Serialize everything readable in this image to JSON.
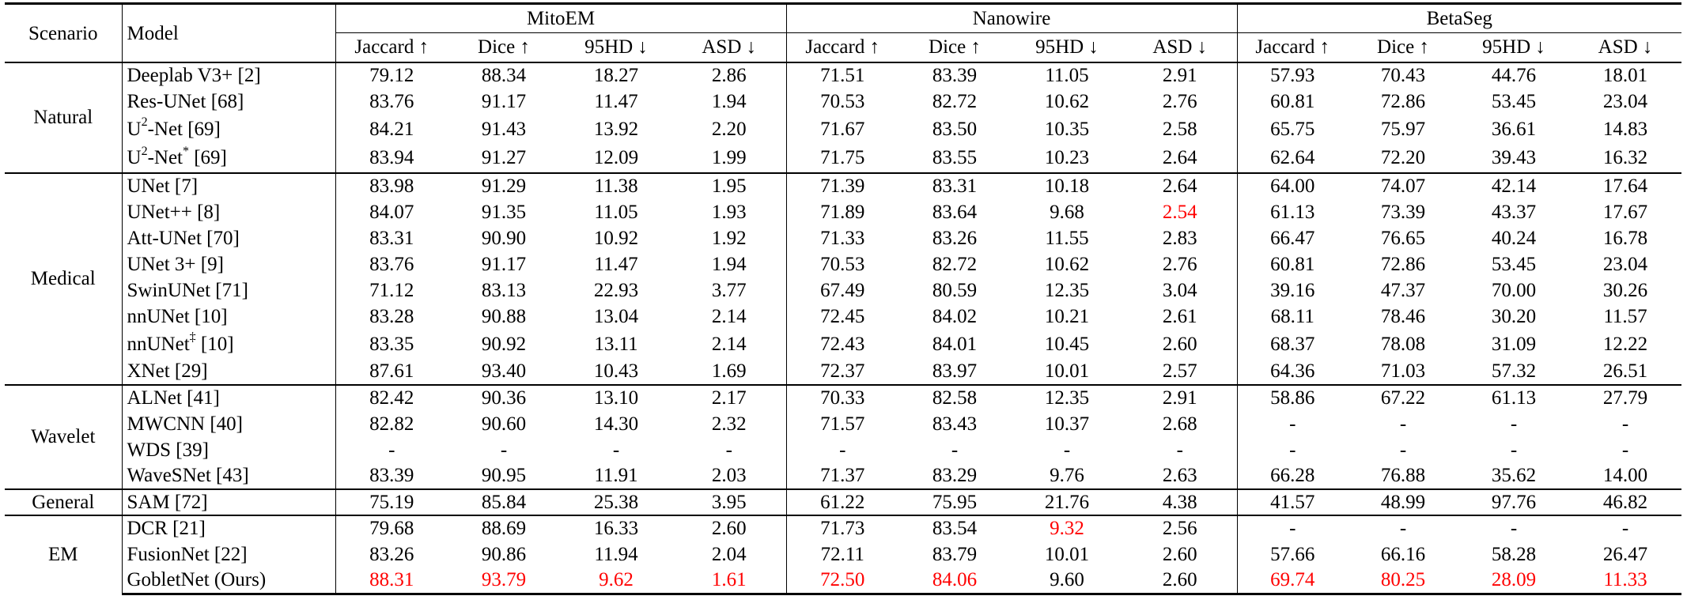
{
  "table": {
    "headers": {
      "scenario": "Scenario",
      "model": "Model",
      "datasets": [
        "MitoEM",
        "Nanowire",
        "BetaSeg"
      ],
      "metrics": [
        "Jaccard ↑",
        "Dice ↑",
        "95HD ↓",
        "ASD ↓"
      ]
    },
    "groups": [
      {
        "scenario": "Natural",
        "rows": [
          {
            "model": "Deeplab V3+ [2]",
            "values": [
              "79.12",
              "88.34",
              "18.27",
              "2.86",
              "71.51",
              "83.39",
              "11.05",
              "2.91",
              "57.93",
              "70.43",
              "44.76",
              "18.01"
            ],
            "style": [
              "",
              "",
              "",
              "",
              "",
              "",
              "",
              "",
              "",
              "",
              "",
              ""
            ]
          },
          {
            "model": "Res-UNet [68]",
            "values": [
              "83.76",
              "91.17",
              "11.47",
              "1.94",
              "70.53",
              "82.72",
              "10.62",
              "2.76",
              "60.81",
              "72.86",
              "53.45",
              "23.04"
            ],
            "style": [
              "",
              "",
              "b",
              "b",
              "",
              "",
              "",
              "",
              "",
              "",
              "",
              ""
            ]
          },
          {
            "model_base": "U",
            "model_sup": "2",
            "model_rest": "-Net [69]",
            "values": [
              "84.21",
              "91.43",
              "13.92",
              "2.20",
              "71.67",
              "83.50",
              "10.35",
              "2.58",
              "65.75",
              "75.97",
              "36.61",
              "14.83"
            ],
            "style": [
              "b",
              "b",
              "",
              "",
              "",
              "",
              "",
              "b",
              "b",
              "b",
              "b",
              "b"
            ]
          },
          {
            "model_base": "U",
            "model_sup": "2",
            "model_rest": "-Net",
            "model_sup2": "*",
            "model_tail": " [69]",
            "values": [
              "83.94",
              "91.27",
              "12.09",
              "1.99",
              "71.75",
              "83.55",
              "10.23",
              "2.64",
              "62.64",
              "72.20",
              "39.43",
              "16.32"
            ],
            "style": [
              "",
              "",
              "",
              "",
              "b",
              "b",
              "b",
              "",
              "",
              "",
              "",
              ""
            ]
          }
        ]
      },
      {
        "scenario": "Medical",
        "rows": [
          {
            "model": "UNet [7]",
            "values": [
              "83.98",
              "91.29",
              "11.38",
              "1.95",
              "71.39",
              "83.31",
              "10.18",
              "2.64",
              "64.00",
              "74.07",
              "42.14",
              "17.64"
            ],
            "style": [
              "",
              "",
              "",
              "",
              "",
              "",
              "",
              "",
              "",
              "",
              "",
              ""
            ]
          },
          {
            "model": "UNet++ [8]",
            "values": [
              "84.07",
              "91.35",
              "11.05",
              "1.93",
              "71.89",
              "83.64",
              "9.68",
              "2.54",
              "61.13",
              "73.39",
              "43.37",
              "17.67"
            ],
            "style": [
              "",
              "",
              "",
              "",
              "",
              "",
              "b",
              "r",
              "",
              "",
              "",
              ""
            ]
          },
          {
            "model": "Att-UNet [70]",
            "values": [
              "83.31",
              "90.90",
              "10.92",
              "1.92",
              "71.33",
              "83.26",
              "11.55",
              "2.83",
              "66.47",
              "76.65",
              "40.24",
              "16.78"
            ],
            "style": [
              "",
              "",
              "",
              "",
              "",
              "",
              "",
              "",
              "",
              "",
              "",
              ""
            ]
          },
          {
            "model": "UNet 3+ [9]",
            "values": [
              "83.76",
              "91.17",
              "11.47",
              "1.94",
              "70.53",
              "82.72",
              "10.62",
              "2.76",
              "60.81",
              "72.86",
              "53.45",
              "23.04"
            ],
            "style": [
              "",
              "",
              "",
              "",
              "",
              "",
              "",
              "",
              "",
              "",
              "",
              ""
            ]
          },
          {
            "model": "SwinUNet [71]",
            "values": [
              "71.12",
              "83.13",
              "22.93",
              "3.77",
              "67.49",
              "80.59",
              "12.35",
              "3.04",
              "39.16",
              "47.37",
              "70.00",
              "30.26"
            ],
            "style": [
              "",
              "",
              "",
              "",
              "",
              "",
              "",
              "",
              "",
              "",
              "",
              ""
            ]
          },
          {
            "model": "nnUNet [10]",
            "values": [
              "83.28",
              "90.88",
              "13.04",
              "2.14",
              "72.45",
              "84.02",
              "10.21",
              "2.61",
              "68.11",
              "78.46",
              "30.20",
              "11.57"
            ],
            "style": [
              "",
              "",
              "",
              "",
              "b",
              "b",
              "",
              "",
              "",
              "",
              "b",
              "b"
            ]
          },
          {
            "model_base": "nnUNet",
            "model_sup": "‡",
            "model_rest": " [10]",
            "values": [
              "83.35",
              "90.92",
              "13.11",
              "2.14",
              "72.43",
              "84.01",
              "10.45",
              "2.60",
              "68.37",
              "78.08",
              "31.09",
              "12.22"
            ],
            "style": [
              "",
              "",
              "",
              "",
              "",
              "",
              "",
              "",
              "b",
              "b",
              "",
              ""
            ]
          },
          {
            "model": "XNet [29]",
            "values": [
              "87.61",
              "93.40",
              "10.43",
              "1.69",
              "72.37",
              "83.97",
              "10.01",
              "2.57",
              "64.36",
              "71.03",
              "57.32",
              "26.51"
            ],
            "style": [
              "b",
              "b",
              "b",
              "b",
              "",
              "",
              "",
              "",
              "",
              "",
              "",
              ""
            ]
          }
        ]
      },
      {
        "scenario": "Wavelet",
        "rows": [
          {
            "model": "ALNet [41]",
            "values": [
              "82.42",
              "90.36",
              "13.10",
              "2.17",
              "70.33",
              "82.58",
              "12.35",
              "2.91",
              "58.86",
              "67.22",
              "61.13",
              "27.79"
            ],
            "style": [
              "",
              "",
              "",
              "",
              "",
              "",
              "",
              "",
              "",
              "",
              "",
              ""
            ]
          },
          {
            "model": "MWCNN [40]",
            "values": [
              "82.82",
              "90.60",
              "14.30",
              "2.32",
              "71.57",
              "83.43",
              "10.37",
              "2.68",
              "-",
              "-",
              "-",
              "-"
            ],
            "style": [
              "",
              "",
              "",
              "",
              "b",
              "b",
              "",
              "",
              "",
              "",
              "",
              ""
            ]
          },
          {
            "model": "WDS [39]",
            "values": [
              "-",
              "-",
              "-",
              "-",
              "-",
              "-",
              "-",
              "-",
              "-",
              "-",
              "-",
              "-"
            ],
            "style": [
              "",
              "",
              "",
              "",
              "",
              "",
              "",
              "",
              "",
              "",
              "",
              ""
            ]
          },
          {
            "model": "WaveSNet [43]",
            "values": [
              "83.39",
              "90.95",
              "11.91",
              "2.03",
              "71.37",
              "83.29",
              "9.76",
              "2.63",
              "66.28",
              "76.88",
              "35.62",
              "14.00"
            ],
            "style": [
              "b",
              "b",
              "b",
              "b",
              "",
              "",
              "b",
              "b",
              "b",
              "b",
              "b",
              "b"
            ]
          }
        ]
      },
      {
        "scenario": "General",
        "rows": [
          {
            "model": "SAM [72]",
            "values": [
              "75.19",
              "85.84",
              "25.38",
              "3.95",
              "61.22",
              "75.95",
              "21.76",
              "4.38",
              "41.57",
              "48.99",
              "97.76",
              "46.82"
            ],
            "style": [
              "b",
              "b",
              "b",
              "b",
              "b",
              "b",
              "b",
              "b",
              "b",
              "b",
              "b",
              "b"
            ]
          }
        ]
      },
      {
        "scenario": "EM",
        "rows": [
          {
            "model": "DCR [21]",
            "values": [
              "79.68",
              "88.69",
              "16.33",
              "2.60",
              "71.73",
              "83.54",
              "9.32",
              "2.56",
              "-",
              "-",
              "-",
              "-"
            ],
            "style": [
              "",
              "",
              "",
              "",
              "",
              "",
              "r",
              "b",
              "",
              "",
              "",
              ""
            ]
          },
          {
            "model": "FusionNet [22]",
            "values": [
              "83.26",
              "90.86",
              "11.94",
              "2.04",
              "72.11",
              "83.79",
              "10.01",
              "2.60",
              "57.66",
              "66.16",
              "58.28",
              "26.47"
            ],
            "style": [
              "b",
              "b",
              "b",
              "b",
              "b",
              "b",
              "",
              "",
              "b",
              "b",
              "b",
              "b"
            ]
          },
          {
            "model": "GobletNet (Ours)",
            "values": [
              "88.31",
              "93.79",
              "9.62",
              "1.61",
              "72.50",
              "84.06",
              "9.60",
              "2.60",
              "69.74",
              "80.25",
              "28.09",
              "11.33"
            ],
            "style": [
              "r",
              "r",
              "r",
              "r",
              "r",
              "r",
              "",
              "",
              "r",
              "r",
              "r",
              "r"
            ]
          }
        ]
      }
    ]
  }
}
